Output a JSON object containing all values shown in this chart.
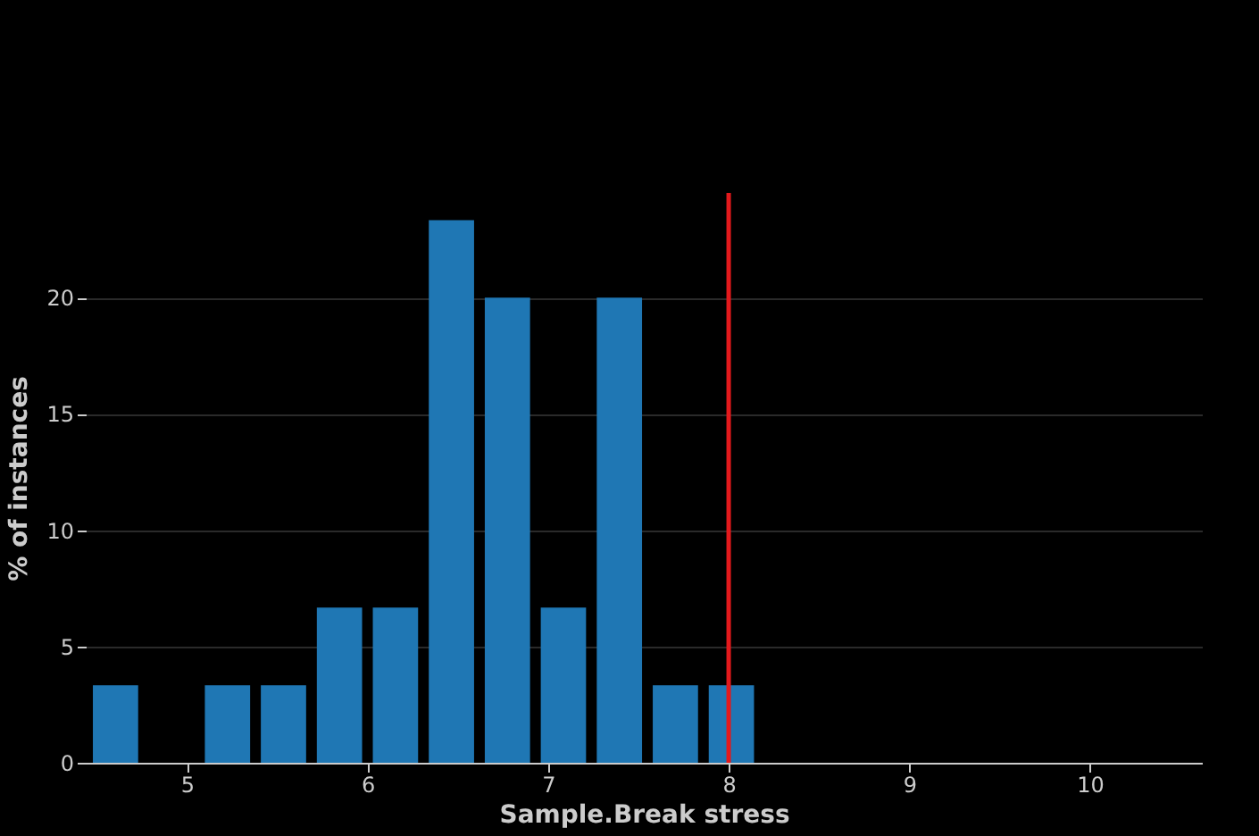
{
  "chart_data": {
    "type": "histogram",
    "xlabel": "Sample.Break stress",
    "ylabel": "% of instances",
    "bins": [
      4.45,
      4.76,
      5.07,
      5.38,
      5.69,
      6.0,
      6.31,
      6.62,
      6.93,
      7.24,
      7.55,
      7.86,
      8.17
    ],
    "values": [
      3.33,
      0,
      3.33,
      3.33,
      6.67,
      6.67,
      23.33,
      20,
      6.67,
      20,
      3.33,
      3.33
    ],
    "color": "#1f77b4",
    "xlim": [
      4.44,
      10.62
    ],
    "xticks": [
      5,
      6,
      7,
      8,
      9,
      10
    ],
    "ylim": [
      0,
      24.5
    ],
    "yticks": [
      0,
      5,
      10,
      15,
      20
    ],
    "grid": "y",
    "ref_lines": [
      {
        "axis": "x",
        "value": 8,
        "color": "#e3191c"
      }
    ]
  }
}
